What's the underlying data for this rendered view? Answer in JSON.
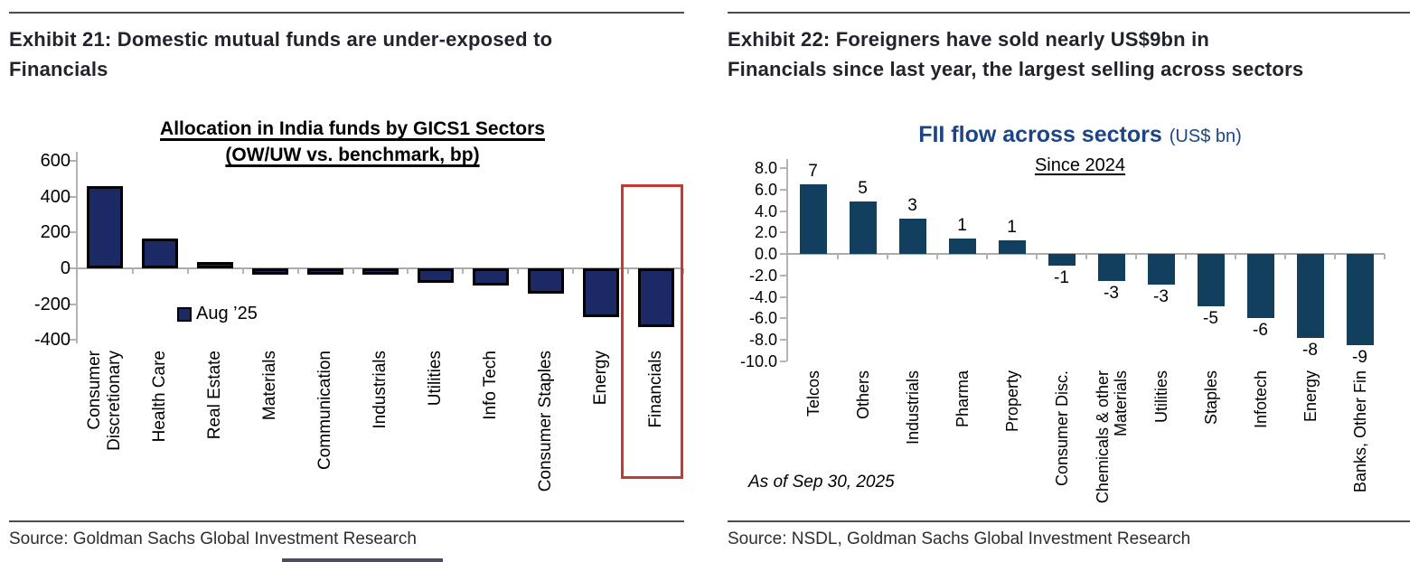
{
  "left_panel": {
    "exhibit_title": "Exhibit 21: Domestic mutual funds are under-exposed to\nFinancials",
    "source": "Source: Goldman Sachs Global Investment Research"
  },
  "right_panel": {
    "exhibit_title": "Exhibit 22: Foreigners have sold nearly US$9bn in\nFinancials since last year, the largest selling across sectors",
    "source": "Source: NSDL, Goldman Sachs Global Investment Research"
  },
  "chart_data": [
    {
      "type": "bar",
      "title": "Allocation in India funds by GICS1 Sectors",
      "subtitle": "(OW/UW vs. benchmark, bp)",
      "legend": "Aug ’25",
      "categories": [
        "Consumer\nDiscretionary",
        "Health Care",
        "Real Estate",
        "Materials",
        "Communication",
        "Industrials",
        "Utilities",
        "Info Tech",
        "Consumer Staples",
        "Energy",
        "Financials"
      ],
      "values": [
        460,
        165,
        2,
        -10,
        -12,
        -12,
        -80,
        -95,
        -140,
        -270,
        -330
      ],
      "ylim": [
        -400,
        600
      ],
      "ytick_values": [
        600,
        400,
        200,
        0,
        -200,
        -400
      ],
      "ytick_labels": [
        "600",
        "400",
        "200",
        "0",
        "-200",
        "-400"
      ],
      "xlabel": "",
      "ylabel": "OW/UW vs. benchmark, bp",
      "grid": false,
      "legend_position": "inside-lower-left",
      "bar_color": "#1b2a64",
      "bar_border_color": "#000000",
      "highlight": {
        "category": "Financials",
        "box_color": "#c23a33"
      }
    },
    {
      "type": "bar",
      "title": "FII flow across sectors",
      "title_suffix": "(US$ bn)",
      "subtitle": "Since 2024",
      "footnote": "As of Sep 30, 2025",
      "categories": [
        "Telcos",
        "Others",
        "Industrials",
        "Pharma",
        "Property",
        "Consumer Disc.",
        "Chemicals & other\nMaterials",
        "Utilities",
        "Staples",
        "Infotech",
        "Energy",
        "Banks, Other Fin"
      ],
      "values": [
        6.5,
        4.9,
        3.3,
        1.4,
        1.3,
        -1.1,
        -2.5,
        -2.9,
        -4.9,
        -6.0,
        -7.8,
        -8.5
      ],
      "data_labels": [
        "7",
        "5",
        "3",
        "1",
        "1",
        "-1",
        "-3",
        "-3",
        "-5",
        "-6",
        "-8",
        "-9"
      ],
      "ylim": [
        -10,
        8
      ],
      "ytick_values": [
        8,
        6,
        4,
        2,
        0,
        -2,
        -4,
        -6,
        -8,
        -10
      ],
      "ytick_labels": [
        "8.0",
        "6.0",
        "4.0",
        "2.0",
        "0.0",
        "-2.0",
        "-4.0",
        "-6.0",
        "-8.0",
        "-10.0"
      ],
      "xlabel": "",
      "ylabel": "US$ bn",
      "grid": false,
      "bar_color": "#123f5e"
    }
  ]
}
